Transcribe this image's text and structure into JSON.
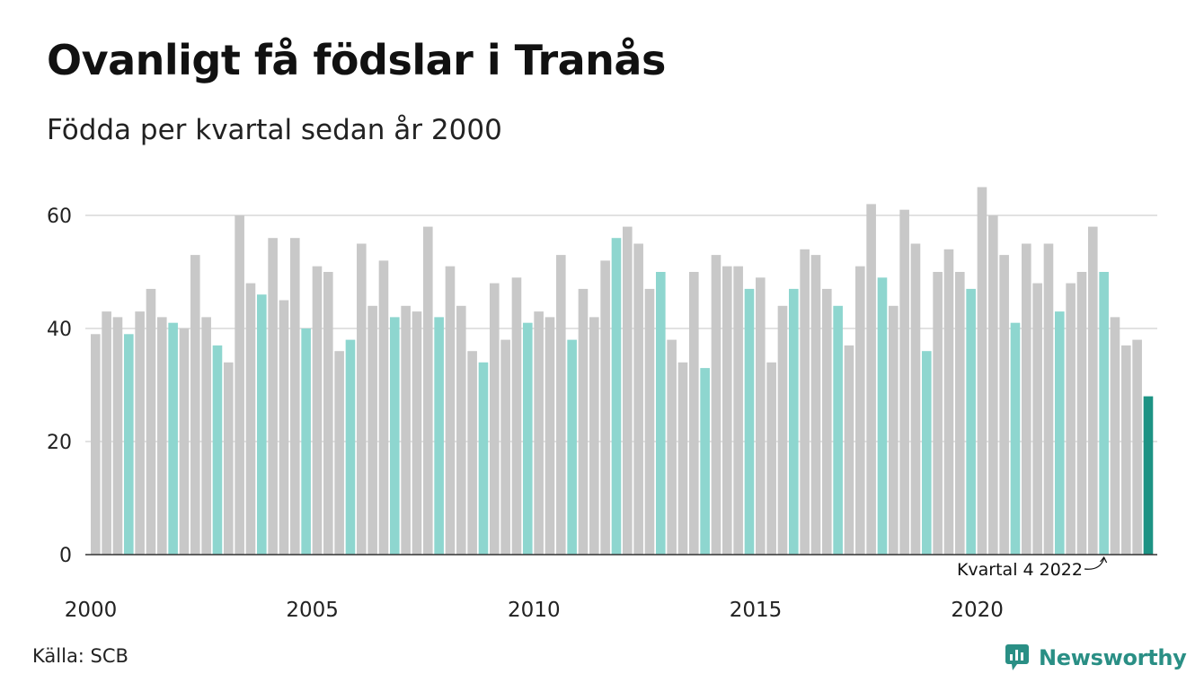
{
  "header": {
    "title": "Ovanligt få födslar i Tranås",
    "subtitle": "Födda per kvartal sedan år 2000"
  },
  "footer": {
    "source": "Källa: SCB",
    "brand": "Newsworthy"
  },
  "colors": {
    "bar_default": "#c8c8c8",
    "bar_highlight_quarter": "#8ed6cf",
    "bar_latest": "#1d9384",
    "gridline": "#e2e2e2",
    "axis": "#333333",
    "brand": "#2a8f85"
  },
  "chart_data": {
    "type": "bar",
    "title": "Ovanligt få födslar i Tranås",
    "subtitle": "Födda per kvartal sedan år 2000",
    "xlabel": "",
    "ylabel": "",
    "ylim": [
      0,
      70
    ],
    "yticks": [
      0,
      20,
      40,
      60
    ],
    "xtick_labels": [
      "2000",
      "2005",
      "2010",
      "2015",
      "2020"
    ],
    "grid": true,
    "start_year": 2000,
    "start_quarter": 1,
    "highlight_quarter": 4,
    "values": [
      39,
      43,
      42,
      39,
      43,
      47,
      42,
      41,
      40,
      53,
      42,
      37,
      34,
      60,
      48,
      46,
      56,
      45,
      56,
      40,
      51,
      50,
      36,
      38,
      55,
      44,
      52,
      42,
      44,
      43,
      58,
      42,
      51,
      44,
      36,
      34,
      48,
      38,
      49,
      41,
      43,
      42,
      53,
      38,
      47,
      42,
      52,
      56,
      58,
      55,
      47,
      50,
      38,
      34,
      50,
      33,
      53,
      51,
      51,
      47,
      49,
      34,
      44,
      47,
      54,
      53,
      47,
      44,
      37,
      51,
      62,
      49,
      44,
      61,
      55,
      36,
      50,
      54,
      50,
      47,
      65,
      60,
      53,
      41,
      55,
      48,
      55,
      43,
      48,
      50,
      58,
      50,
      42,
      37,
      38,
      28
    ],
    "annotation": {
      "text": "Kvartal 4 2022",
      "target": "Q4 2022"
    }
  }
}
